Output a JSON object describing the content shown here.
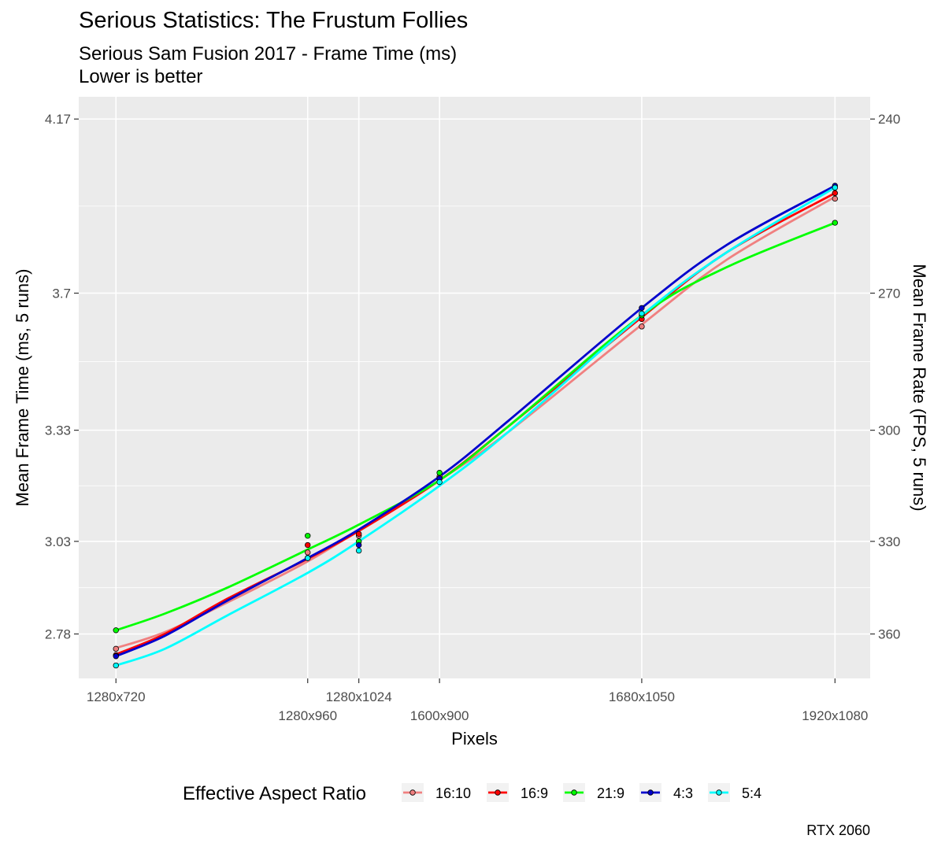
{
  "chart_data": {
    "type": "line",
    "title": "Serious Statistics: The Frustum Follies",
    "subtitle": "Serious Sam Fusion 2017 - Frame Time (ms)",
    "subtitle2": "Lower is better",
    "caption": "RTX 2060",
    "xlabel": "Pixels",
    "ylabel": "Mean Frame Time (ms, 5 runs)",
    "ylabel_right": "Mean Frame Rate (FPS, 5 runs)",
    "x_tick_labels": [
      "1280x720",
      "1280x960",
      "1280x1024",
      "1600x900",
      "1680x1050",
      "1920x1080"
    ],
    "x_tick_values": [
      921600,
      1228800,
      1310720,
      1440000,
      1764000,
      2073600
    ],
    "xlim": [
      862000,
      2130000
    ],
    "y_ticks": [
      2.78,
      3.03,
      3.33,
      3.7,
      4.17
    ],
    "y_tick_labels": [
      "2.78",
      "3.03",
      "3.33",
      "3.7",
      "4.17"
    ],
    "y_minor_ticks": [
      2.905,
      3.18,
      3.515,
      3.935
    ],
    "ylim": [
      2.66,
      4.23
    ],
    "y_right_ticks": [
      360,
      330,
      300,
      270,
      240
    ],
    "y_right_tick_labels": [
      "360",
      "330",
      "300",
      "270",
      "240"
    ],
    "legend_title": "Effective Aspect Ratio",
    "legend_position": "bottom",
    "grid": true,
    "series": [
      {
        "name": "16:10",
        "color": "#F08080",
        "points": [
          [
            921600,
            2.74
          ],
          [
            1228800,
            3.0
          ],
          [
            1310720,
            3.045
          ],
          [
            1440000,
            3.205
          ],
          [
            1764000,
            3.61
          ],
          [
            2073600,
            3.955
          ]
        ],
        "line": [
          [
            921600,
            2.742
          ],
          [
            1000000,
            2.785
          ],
          [
            1100000,
            2.865
          ],
          [
            1228800,
            2.976
          ],
          [
            1310720,
            3.06
          ],
          [
            1440000,
            3.195
          ],
          [
            1550000,
            3.325
          ],
          [
            1764000,
            3.615
          ],
          [
            1900000,
            3.79
          ],
          [
            2073600,
            3.96
          ]
        ]
      },
      {
        "name": "16:9",
        "color": "#FF0000",
        "points": [
          [
            921600,
            2.723
          ],
          [
            1228800,
            3.02
          ],
          [
            1310720,
            3.05
          ],
          [
            1440000,
            3.2
          ],
          [
            1764000,
            3.63
          ],
          [
            2073600,
            3.97
          ]
        ],
        "line": [
          [
            921600,
            2.725
          ],
          [
            1000000,
            2.78
          ],
          [
            1100000,
            2.875
          ],
          [
            1228800,
            2.983
          ],
          [
            1310720,
            3.058
          ],
          [
            1440000,
            3.195
          ],
          [
            1550000,
            3.34
          ],
          [
            1764000,
            3.635
          ],
          [
            1900000,
            3.81
          ],
          [
            2073600,
            3.97
          ]
        ]
      },
      {
        "name": "21:9",
        "color": "#00FF00",
        "points": [
          [
            921600,
            2.79
          ],
          [
            1228800,
            3.045
          ],
          [
            1310720,
            3.03
          ],
          [
            1440000,
            3.215
          ],
          [
            1764000,
            3.64
          ],
          [
            2073600,
            3.89
          ]
        ],
        "line": [
          [
            921600,
            2.79
          ],
          [
            1000000,
            2.835
          ],
          [
            1100000,
            2.905
          ],
          [
            1228800,
            3.008
          ],
          [
            1310720,
            3.075
          ],
          [
            1440000,
            3.195
          ],
          [
            1550000,
            3.34
          ],
          [
            1764000,
            3.64
          ],
          [
            1900000,
            3.77
          ],
          [
            2073600,
            3.89
          ]
        ]
      },
      {
        "name": "4:3",
        "color": "#0000CD",
        "points": [
          [
            921600,
            2.72
          ],
          [
            1228800,
            2.985
          ],
          [
            1310720,
            3.02
          ],
          [
            1440000,
            3.2
          ],
          [
            1764000,
            3.66
          ],
          [
            2073600,
            3.99
          ]
        ],
        "line": [
          [
            921600,
            2.72
          ],
          [
            1000000,
            2.775
          ],
          [
            1100000,
            2.87
          ],
          [
            1228800,
            2.985
          ],
          [
            1310720,
            3.062
          ],
          [
            1440000,
            3.205
          ],
          [
            1550000,
            3.355
          ],
          [
            1764000,
            3.66
          ],
          [
            1900000,
            3.83
          ],
          [
            2073600,
            3.99
          ]
        ]
      },
      {
        "name": "5:4",
        "color": "#00FFFF",
        "points": [
          [
            921600,
            2.695
          ],
          [
            1228800,
            2.985
          ],
          [
            1310720,
            3.005
          ],
          [
            1440000,
            3.19
          ],
          [
            1764000,
            3.645
          ],
          [
            2073600,
            3.985
          ]
        ],
        "line": [
          [
            921600,
            2.695
          ],
          [
            1000000,
            2.74
          ],
          [
            1100000,
            2.83
          ],
          [
            1228800,
            2.945
          ],
          [
            1310720,
            3.03
          ],
          [
            1440000,
            3.18
          ],
          [
            1550000,
            3.325
          ],
          [
            1764000,
            3.64
          ],
          [
            1900000,
            3.81
          ],
          [
            2073600,
            3.985
          ]
        ]
      }
    ]
  }
}
